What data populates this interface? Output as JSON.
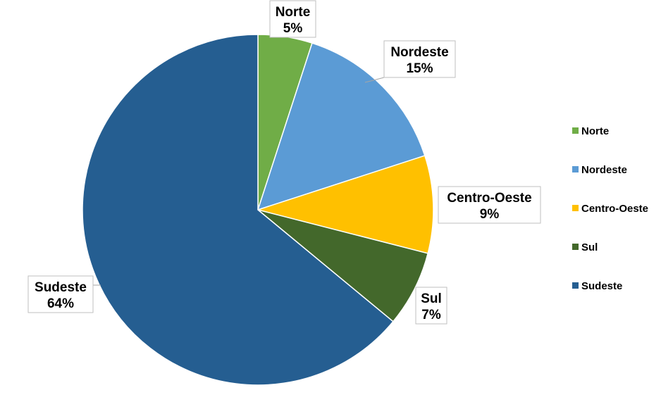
{
  "chart_data": {
    "type": "pie",
    "title": "",
    "categories": [
      "Norte",
      "Nordeste",
      "Centro-Oeste",
      "Sul",
      "Sudeste"
    ],
    "values": [
      5,
      15,
      9,
      7,
      64
    ],
    "value_labels": [
      "5%",
      "15%",
      "9%",
      "7%",
      "64%"
    ],
    "colors": [
      "#70ad47",
      "#5b9bd5",
      "#ffc000",
      "#43682b",
      "#255e91"
    ],
    "start_angle_deg": 0,
    "direction": "clockwise",
    "legend": {
      "placement": "right",
      "entries": [
        "Norte",
        "Nordeste",
        "Centro-Oeste",
        "Sul",
        "Sudeste"
      ]
    }
  }
}
